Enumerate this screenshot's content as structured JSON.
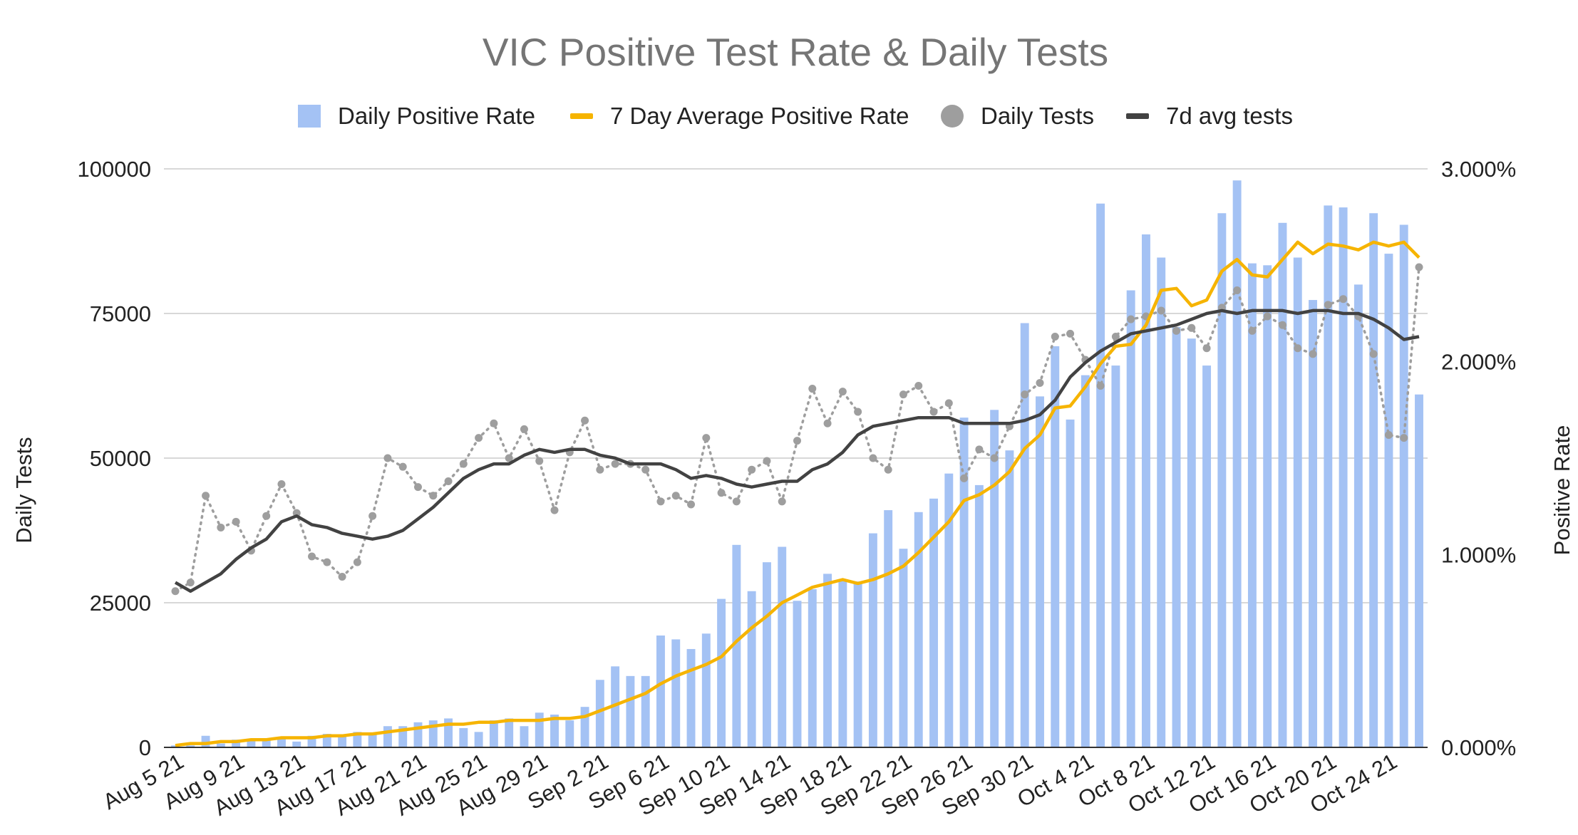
{
  "chart_data": {
    "type": "bar",
    "title": "VIC Positive Test Rate & Daily Tests",
    "ylabel": "Daily Tests",
    "y2label": "Positive Rate",
    "ylim": [
      0,
      100000
    ],
    "y2lim": [
      0,
      0.03
    ],
    "yticks": [
      "0",
      "25000",
      "50000",
      "75000",
      "100000"
    ],
    "y2ticks": [
      "0.000%",
      "1.000%",
      "2.000%",
      "3.000%"
    ],
    "xtick_labels": [
      "Aug 5 21",
      "Aug 9 21",
      "Aug 13 21",
      "Aug 17 21",
      "Aug 21 21",
      "Aug 25 21",
      "Aug 29 21",
      "Sep 2 21",
      "Sep 6 21",
      "Sep 10 21",
      "Sep 14 21",
      "Sep 18 21",
      "Sep 22 21",
      "Sep 26 21",
      "Sep 30 21",
      "Oct 4 21",
      "Oct 8 21",
      "Oct 12 21",
      "Oct 16 21",
      "Oct 20 21",
      "Oct 24 21"
    ],
    "grid": true,
    "legend_position": "top",
    "colors": {
      "bars": "#a4c2f4",
      "avg_rate": "#f6b400",
      "daily_tests": "#9e9e9e",
      "avg_tests": "#424242"
    },
    "legend": [
      {
        "label": "Daily Positive Rate",
        "kind": "square",
        "color": "#a4c2f4"
      },
      {
        "label": "7 Day Average Positive Rate",
        "kind": "line",
        "color": "#f6b400"
      },
      {
        "label": "Daily Tests",
        "kind": "circle",
        "color": "#9e9e9e"
      },
      {
        "label": "7d avg tests",
        "kind": "line",
        "color": "#424242"
      }
    ],
    "x": [
      "Aug 5 21",
      "Aug 6 21",
      "Aug 7 21",
      "Aug 8 21",
      "Aug 9 21",
      "Aug 10 21",
      "Aug 11 21",
      "Aug 12 21",
      "Aug 13 21",
      "Aug 14 21",
      "Aug 15 21",
      "Aug 16 21",
      "Aug 17 21",
      "Aug 18 21",
      "Aug 19 21",
      "Aug 20 21",
      "Aug 21 21",
      "Aug 22 21",
      "Aug 23 21",
      "Aug 24 21",
      "Aug 25 21",
      "Aug 26 21",
      "Aug 27 21",
      "Aug 28 21",
      "Aug 29 21",
      "Aug 30 21",
      "Aug 31 21",
      "Sep 1 21",
      "Sep 2 21",
      "Sep 3 21",
      "Sep 4 21",
      "Sep 5 21",
      "Sep 6 21",
      "Sep 7 21",
      "Sep 8 21",
      "Sep 9 21",
      "Sep 10 21",
      "Sep 11 21",
      "Sep 12 21",
      "Sep 13 21",
      "Sep 14 21",
      "Sep 15 21",
      "Sep 16 21",
      "Sep 17 21",
      "Sep 18 21",
      "Sep 19 21",
      "Sep 20 21",
      "Sep 21 21",
      "Sep 22 21",
      "Sep 23 21",
      "Sep 24 21",
      "Sep 25 21",
      "Sep 26 21",
      "Sep 27 21",
      "Sep 28 21",
      "Sep 29 21",
      "Sep 30 21",
      "Oct 1 21",
      "Oct 2 21",
      "Oct 3 21",
      "Oct 4 21",
      "Oct 5 21",
      "Oct 6 21",
      "Oct 7 21",
      "Oct 8 21",
      "Oct 9 21",
      "Oct 10 21",
      "Oct 11 21",
      "Oct 12 21",
      "Oct 13 21",
      "Oct 14 21",
      "Oct 15 21",
      "Oct 16 21",
      "Oct 17 21",
      "Oct 18 21",
      "Oct 19 21",
      "Oct 20 21",
      "Oct 21 21",
      "Oct 22 21",
      "Oct 23 21",
      "Oct 24 21",
      "Oct 25 21",
      "Oct 26 21"
    ],
    "series": [
      {
        "name": "Daily Positive Rate",
        "type": "bar",
        "axis": "right",
        "values": [
          0.0001,
          0.0001,
          0.0006,
          0.0002,
          0.0004,
          0.0004,
          0.0004,
          0.0005,
          0.0003,
          0.0006,
          0.0007,
          0.0006,
          0.0008,
          0.0007,
          0.0011,
          0.0011,
          0.0013,
          0.0014,
          0.0015,
          0.001,
          0.0008,
          0.0014,
          0.0015,
          0.0011,
          0.0018,
          0.0017,
          0.0014,
          0.0021,
          0.0035,
          0.0042,
          0.0037,
          0.0037,
          0.0058,
          0.0056,
          0.0051,
          0.0059,
          0.0077,
          0.0105,
          0.0081,
          0.0096,
          0.0104,
          0.0076,
          0.0082,
          0.009,
          0.0087,
          0.0086,
          0.0111,
          0.0123,
          0.0103,
          0.0122,
          0.0129,
          0.0142,
          0.0171,
          0.0136,
          0.0175,
          0.0154,
          0.022,
          0.0182,
          0.0208,
          0.017,
          0.0193,
          0.0282,
          0.0198,
          0.0237,
          0.0266,
          0.0254,
          0.0218,
          0.0212,
          0.0198,
          0.0277,
          0.0294,
          0.0251,
          0.025,
          0.0272,
          0.0254,
          0.0232,
          0.0281,
          0.028,
          0.024,
          0.0277,
          0.0256,
          0.0271,
          0.0183
        ]
      },
      {
        "name": "7 Day Average Positive Rate",
        "type": "line",
        "axis": "right",
        "values": [
          0.0001,
          0.0002,
          0.0002,
          0.0003,
          0.0003,
          0.0004,
          0.0004,
          0.0005,
          0.0005,
          0.0005,
          0.0006,
          0.0006,
          0.0007,
          0.0007,
          0.0008,
          0.0009,
          0.001,
          0.0011,
          0.0012,
          0.0012,
          0.0013,
          0.0013,
          0.0014,
          0.0014,
          0.0014,
          0.0015,
          0.0015,
          0.0016,
          0.0019,
          0.0022,
          0.0025,
          0.0028,
          0.0033,
          0.0037,
          0.004,
          0.0043,
          0.0047,
          0.0055,
          0.0062,
          0.0068,
          0.0075,
          0.0079,
          0.0083,
          0.0085,
          0.0087,
          0.0085,
          0.0087,
          0.009,
          0.0094,
          0.0101,
          0.0109,
          0.0117,
          0.0128,
          0.0131,
          0.0136,
          0.0143,
          0.0155,
          0.0162,
          0.0176,
          0.0177,
          0.0187,
          0.0199,
          0.0208,
          0.0209,
          0.0219,
          0.0237,
          0.0238,
          0.0229,
          0.0232,
          0.0247,
          0.0253,
          0.0245,
          0.0244,
          0.0253,
          0.0262,
          0.0256,
          0.0261,
          0.026,
          0.0258,
          0.0262,
          0.026,
          0.0262,
          0.0254
        ]
      },
      {
        "name": "Daily Tests",
        "type": "scatter-line",
        "axis": "left",
        "values": [
          27000,
          28500,
          43500,
          38000,
          39000,
          34000,
          40000,
          45500,
          40500,
          33000,
          32000,
          29500,
          32000,
          40000,
          50000,
          48500,
          45000,
          43500,
          46000,
          49000,
          53500,
          56000,
          50000,
          55000,
          49500,
          41000,
          51000,
          56500,
          48000,
          49000,
          49000,
          48000,
          42500,
          43500,
          42000,
          53500,
          44000,
          42500,
          48000,
          49500,
          42500,
          53000,
          62000,
          56000,
          61500,
          58000,
          50000,
          48000,
          61000,
          62500,
          58000,
          59500,
          46500,
          51500,
          50000,
          55500,
          61000,
          63000,
          71000,
          71500,
          67000,
          62500,
          71000,
          74000,
          74500,
          75500,
          72000,
          72500,
          69000,
          76000,
          79000,
          72000,
          74500,
          73000,
          69000,
          68000,
          76500,
          77500,
          74500,
          68000,
          54000,
          53500,
          83000
        ]
      },
      {
        "name": "7d avg tests",
        "type": "line",
        "axis": "left",
        "values": [
          28500,
          27000,
          28500,
          30000,
          32500,
          34500,
          36000,
          39000,
          40000,
          38500,
          38000,
          37000,
          36500,
          36000,
          36500,
          37500,
          39500,
          41500,
          44000,
          46500,
          48000,
          49000,
          49000,
          50500,
          51500,
          51000,
          51500,
          51500,
          50500,
          50000,
          49000,
          49000,
          49000,
          48000,
          46500,
          47000,
          46500,
          45500,
          45000,
          45500,
          46000,
          46000,
          48000,
          49000,
          51000,
          54000,
          55500,
          56000,
          56500,
          57000,
          57000,
          57000,
          56000,
          56000,
          56000,
          56000,
          56500,
          57500,
          60000,
          64000,
          66500,
          68500,
          70000,
          71500,
          72000,
          72500,
          73000,
          74000,
          75000,
          75500,
          75000,
          75500,
          75500,
          75500,
          75000,
          75500,
          75500,
          75000,
          75000,
          74000,
          72500,
          70500,
          71000
        ]
      }
    ]
  }
}
